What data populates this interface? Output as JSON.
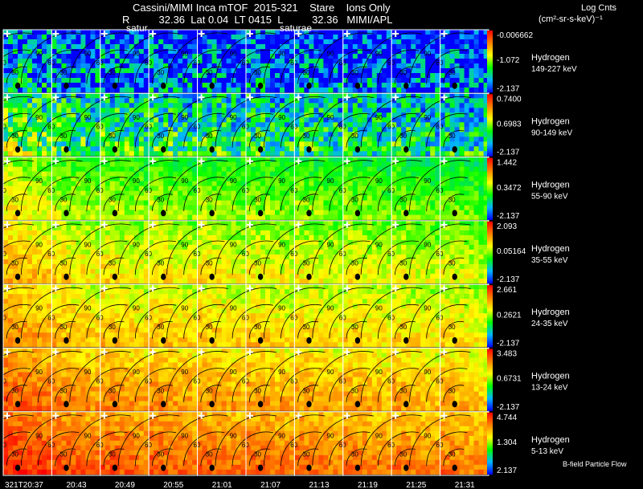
{
  "header": {
    "title": "Cassini/MIMI Inca mTOF  2015-321    Stare    Ions Only",
    "subtitle": "R          32.36  Lat 0.04  LT 0415  L          32.36   MIMI/APL",
    "saturate_labels": [
      "satur",
      "saturae"
    ]
  },
  "colorbar_title": "Log Cnts",
  "colorbar_unit": "(cm²-sr-s-keV)⁻¹",
  "footer_label": "B-field Particle Flow",
  "colors": {
    "scale": [
      "#0000ff",
      "#00b4ff",
      "#00ff00",
      "#ffff00",
      "#ff8000",
      "#ff0000"
    ]
  },
  "chart_data": {
    "type": "heatmap",
    "time_labels": [
      "321T20:37",
      "20:43",
      "20:49",
      "20:55",
      "21:01",
      "21:07",
      "21:13",
      "21:19",
      "21:25",
      "21:31"
    ],
    "contour_labels": [
      "90",
      "60",
      "30"
    ],
    "rows": [
      {
        "species": "Hydrogen",
        "energy": "149-227 keV",
        "max": "-0.006662",
        "mid": "-1.072",
        "min": "-2.137"
      },
      {
        "species": "Hydrogen",
        "energy": "90-149 keV",
        "max": "0.7400",
        "mid": "0.6983",
        "min": "-2.137"
      },
      {
        "species": "Hydrogen",
        "energy": "55-90 keV",
        "max": "1.442",
        "mid": "0.3472",
        "min": "-2.137"
      },
      {
        "species": "Hydrogen",
        "energy": "35-55 keV",
        "max": "2.093",
        "mid": "0.05164",
        "min": "-2.137"
      },
      {
        "species": "Hydrogen",
        "energy": "24-35 keV",
        "max": "2.661",
        "mid": "0.2621",
        "min": "-2.137"
      },
      {
        "species": "Hydrogen",
        "energy": "13-24 keV",
        "max": "3.483",
        "mid": "0.6731",
        "min": "-2.137"
      },
      {
        "species": "Hydrogen",
        "energy": "5-13 keV",
        "max": "4.744",
        "mid": "1.304",
        "min": "2.137"
      }
    ],
    "row_levels": [
      0.18,
      0.35,
      0.5,
      0.6,
      0.66,
      0.74,
      0.82
    ]
  }
}
